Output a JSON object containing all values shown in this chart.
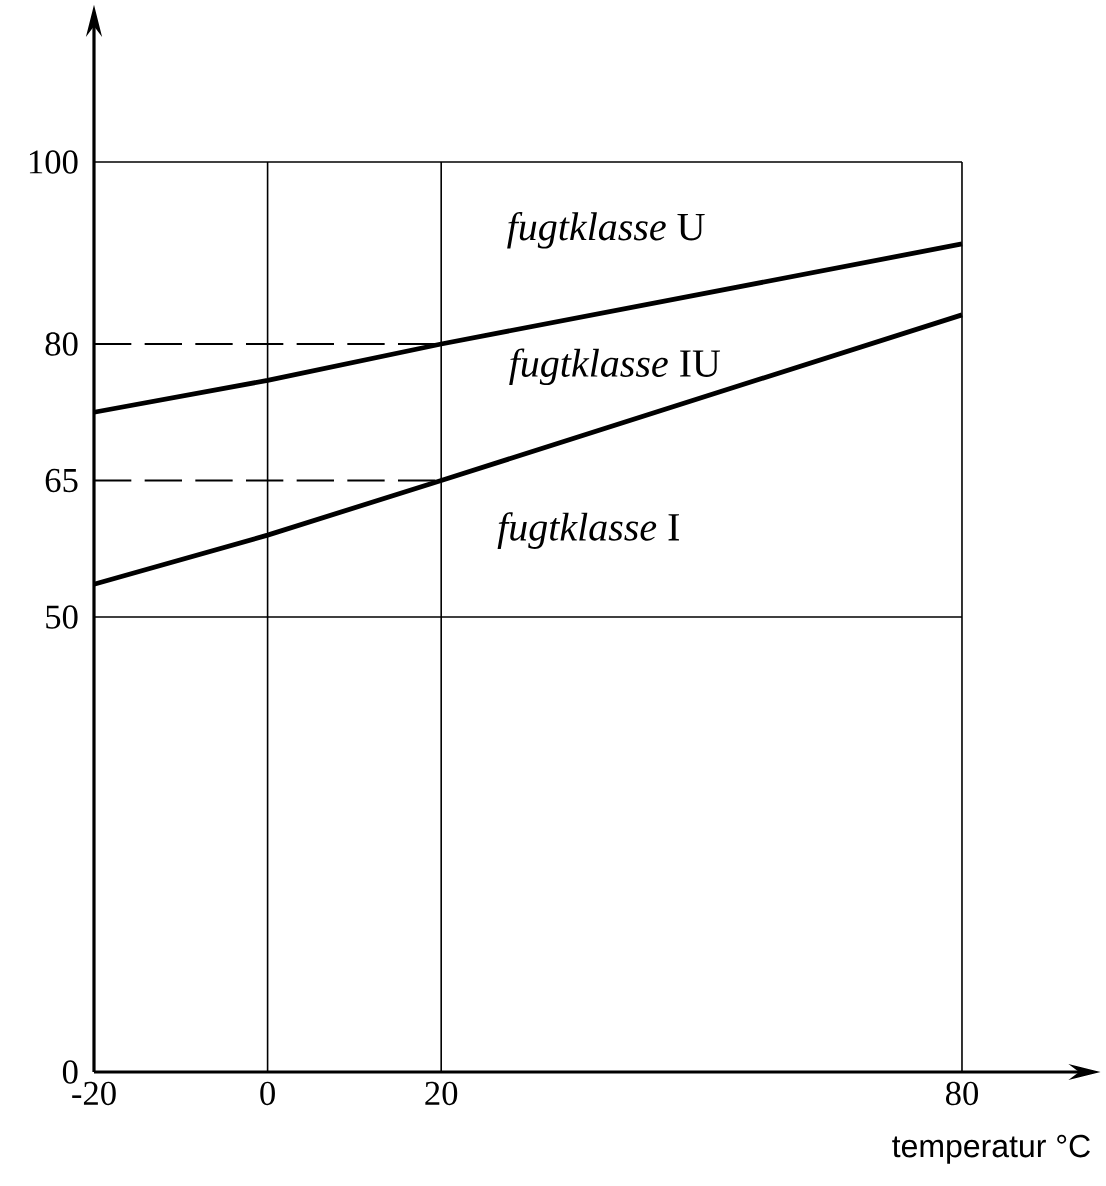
{
  "chart_data": {
    "type": "line",
    "xlabel": "temperatur °C",
    "xlim": [
      -20,
      80
    ],
    "ylim": [
      0,
      100
    ],
    "xticks": [
      -20,
      0,
      20,
      80
    ],
    "yticks": [
      0,
      50,
      65,
      80,
      100
    ],
    "series": [
      {
        "color": "#000000",
        "x": [
          -20,
          0,
          20,
          80
        ],
        "values": [
          72.5,
          76,
          80,
          91
        ]
      },
      {
        "color": "#000000",
        "x": [
          -20,
          0,
          20,
          80
        ],
        "values": [
          53.6,
          59,
          65,
          83.2
        ]
      },
      {
        "color": "#000000",
        "x": [
          -20,
          20
        ],
        "values": [
          80,
          80
        ],
        "line_style": "dashed"
      },
      {
        "color": "#000000",
        "x": [
          -20,
          20
        ],
        "values": [
          65,
          65
        ],
        "line_style": "dashed"
      }
    ],
    "ref_lines": [
      {
        "axis": "y",
        "value": 50
      },
      {
        "axis": "y",
        "value": 100
      },
      {
        "axis": "x",
        "value": 0
      },
      {
        "axis": "x",
        "value": 20
      },
      {
        "axis": "x",
        "value": 80
      }
    ],
    "annotations": [
      "*fugtklasse* U",
      "*fugtklasse* IU",
      "*fugtklasse* I"
    ]
  }
}
